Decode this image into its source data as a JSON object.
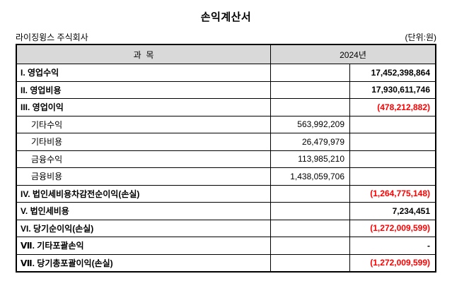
{
  "document": {
    "title": "손익계산서",
    "company": "라이징윙스 주식회사",
    "unit_label": "(단위:원)"
  },
  "colors": {
    "negative_value": "#FF0000",
    "header_background": "#D9D9D9",
    "border": "#000000"
  },
  "table": {
    "header": {
      "item_column": "과  목",
      "year_column": "2024년"
    },
    "rows": [
      {
        "label": "I. 영업수익",
        "level": "main",
        "mid": "",
        "right": "17,452,398,864",
        "negative": false
      },
      {
        "label": "II. 영업비용",
        "level": "main",
        "mid": "",
        "right": "17,930,611,746",
        "negative": false
      },
      {
        "label": "III. 영업이익",
        "level": "main",
        "mid": "",
        "right": "(478,212,882)",
        "negative": true
      },
      {
        "label": "기타수익",
        "level": "sub",
        "mid": "563,992,209",
        "right": "",
        "negative": false
      },
      {
        "label": "기타비용",
        "level": "sub",
        "mid": "26,479,979",
        "right": "",
        "negative": false
      },
      {
        "label": "금융수익",
        "level": "sub",
        "mid": "113,985,210",
        "right": "",
        "negative": false
      },
      {
        "label": "금융비용",
        "level": "sub",
        "mid": "1,438,059,706",
        "right": "",
        "negative": false
      },
      {
        "label": "IV. 법인세비용차감전순이익(손실)",
        "level": "main",
        "mid": "",
        "right": "(1,264,775,148)",
        "negative": true
      },
      {
        "label": "V. 법인세비용",
        "level": "main",
        "mid": "",
        "right": "7,234,451",
        "negative": false
      },
      {
        "label": "VI. 당기순이익(손실)",
        "level": "main",
        "mid": "",
        "right": "(1,272,009,599)",
        "negative": true
      },
      {
        "label": "Ⅶ. 기타포괄손익",
        "level": "main",
        "mid": "",
        "right": "-",
        "negative": false
      },
      {
        "label": "Ⅶ. 당기총포괄이익(손실)",
        "level": "main",
        "mid": "",
        "right": "(1,272,009,599)",
        "negative": true
      }
    ]
  }
}
